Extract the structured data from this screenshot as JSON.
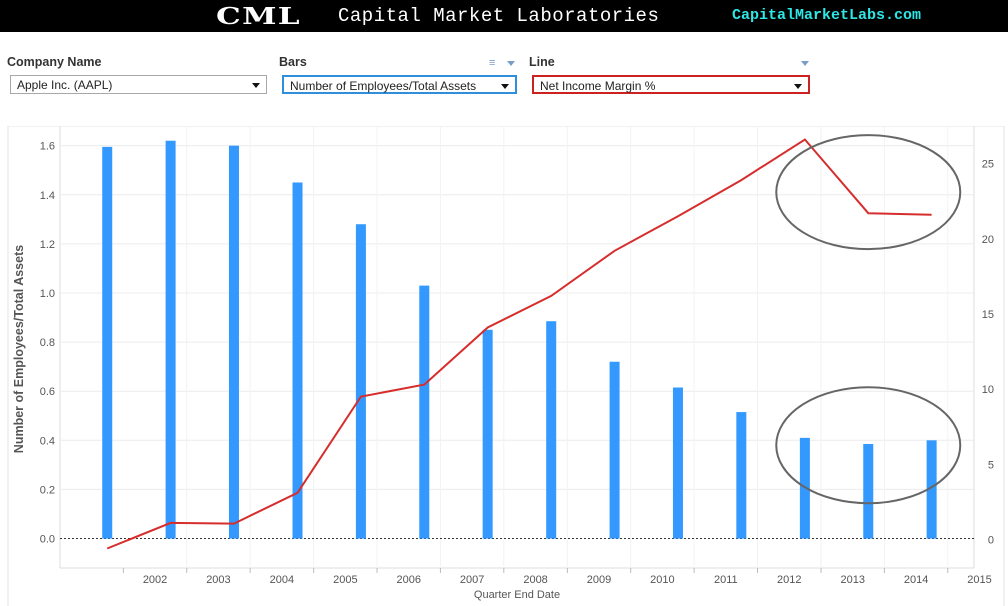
{
  "header": {
    "logo": "CML",
    "org_name": "Capital Market Laboratories",
    "site": "CapitalMarketLabs.com"
  },
  "controls": {
    "company": {
      "label": "Company Name",
      "value": "Apple Inc. (AAPL)"
    },
    "bars": {
      "label": "Bars",
      "value": "Number of Employees/Total Assets",
      "menu_icon": "list-menu-icon"
    },
    "line": {
      "label": "Line",
      "value": "Net Income Margin %"
    }
  },
  "colors": {
    "bar": "#3399ff",
    "line": "#d62d2d",
    "banner": "#000000",
    "site_link": "#2ee6e6",
    "bars_dropdown_border": "#2f8fdd",
    "line_dropdown_border": "#cc2222",
    "annotation_ellipse": "#666666"
  },
  "chart_data": {
    "type": "bar",
    "xlabel": "Quarter End Date",
    "ylabel": "Number of Employees/Total Assets",
    "ylabel_right": "",
    "categories": [
      "2002",
      "2003",
      "2004",
      "2005",
      "2006",
      "2007",
      "2008",
      "2009",
      "2010",
      "2011",
      "2012",
      "2013",
      "2014",
      "2015"
    ],
    "ylim": [
      -0.12,
      1.68
    ],
    "y_ticks": [
      0.0,
      0.2,
      0.4,
      0.6,
      0.8,
      1.0,
      1.2,
      1.4,
      1.6
    ],
    "y_tick_labels": [
      "0.0",
      "0.2",
      "0.4",
      "0.6",
      "0.8",
      "1.0",
      "1.2",
      "1.4",
      "1.6"
    ],
    "y2lim": [
      -1.9,
      27.5
    ],
    "y2_ticks": [
      0,
      5,
      10,
      15,
      20,
      25
    ],
    "y2_tick_labels": [
      "0",
      "5",
      "10",
      "15",
      "20",
      "25"
    ],
    "grid": true,
    "zero_line": "dotted",
    "series": [
      {
        "axis": "left",
        "type": "bar",
        "points": [
          {
            "x": "2001-09-30",
            "y": 1.595
          },
          {
            "x": "2002-09-30",
            "y": 1.62
          },
          {
            "x": "2003-09-30",
            "y": 1.6
          },
          {
            "x": "2004-09-30",
            "y": 1.45
          },
          {
            "x": "2005-09-30",
            "y": 1.28
          },
          {
            "x": "2006-09-30",
            "y": 1.03
          },
          {
            "x": "2007-09-30",
            "y": 0.85
          },
          {
            "x": "2008-09-30",
            "y": 0.885
          },
          {
            "x": "2009-09-30",
            "y": 0.72
          },
          {
            "x": "2010-09-30",
            "y": 0.615
          },
          {
            "x": "2011-09-30",
            "y": 0.515
          },
          {
            "x": "2012-09-30",
            "y": 0.41
          },
          {
            "x": "2013-09-30",
            "y": 0.385
          },
          {
            "x": "2014-09-30",
            "y": 0.4
          }
        ]
      },
      {
        "axis": "right",
        "type": "line",
        "points": [
          {
            "x": "2001-09-30",
            "y": -0.6
          },
          {
            "x": "2002-09-30",
            "y": 1.1
          },
          {
            "x": "2003-09-30",
            "y": 1.05
          },
          {
            "x": "2004-09-30",
            "y": 3.1
          },
          {
            "x": "2005-09-30",
            "y": 9.5
          },
          {
            "x": "2006-09-30",
            "y": 10.3
          },
          {
            "x": "2007-09-30",
            "y": 14.1
          },
          {
            "x": "2008-09-30",
            "y": 16.2
          },
          {
            "x": "2009-09-30",
            "y": 19.2
          },
          {
            "x": "2010-09-30",
            "y": 21.5
          },
          {
            "x": "2011-09-30",
            "y": 23.9
          },
          {
            "x": "2012-09-30",
            "y": 26.6
          },
          {
            "x": "2013-09-30",
            "y": 21.7
          },
          {
            "x": "2014-09-30",
            "y": 21.6
          }
        ]
      }
    ]
  }
}
